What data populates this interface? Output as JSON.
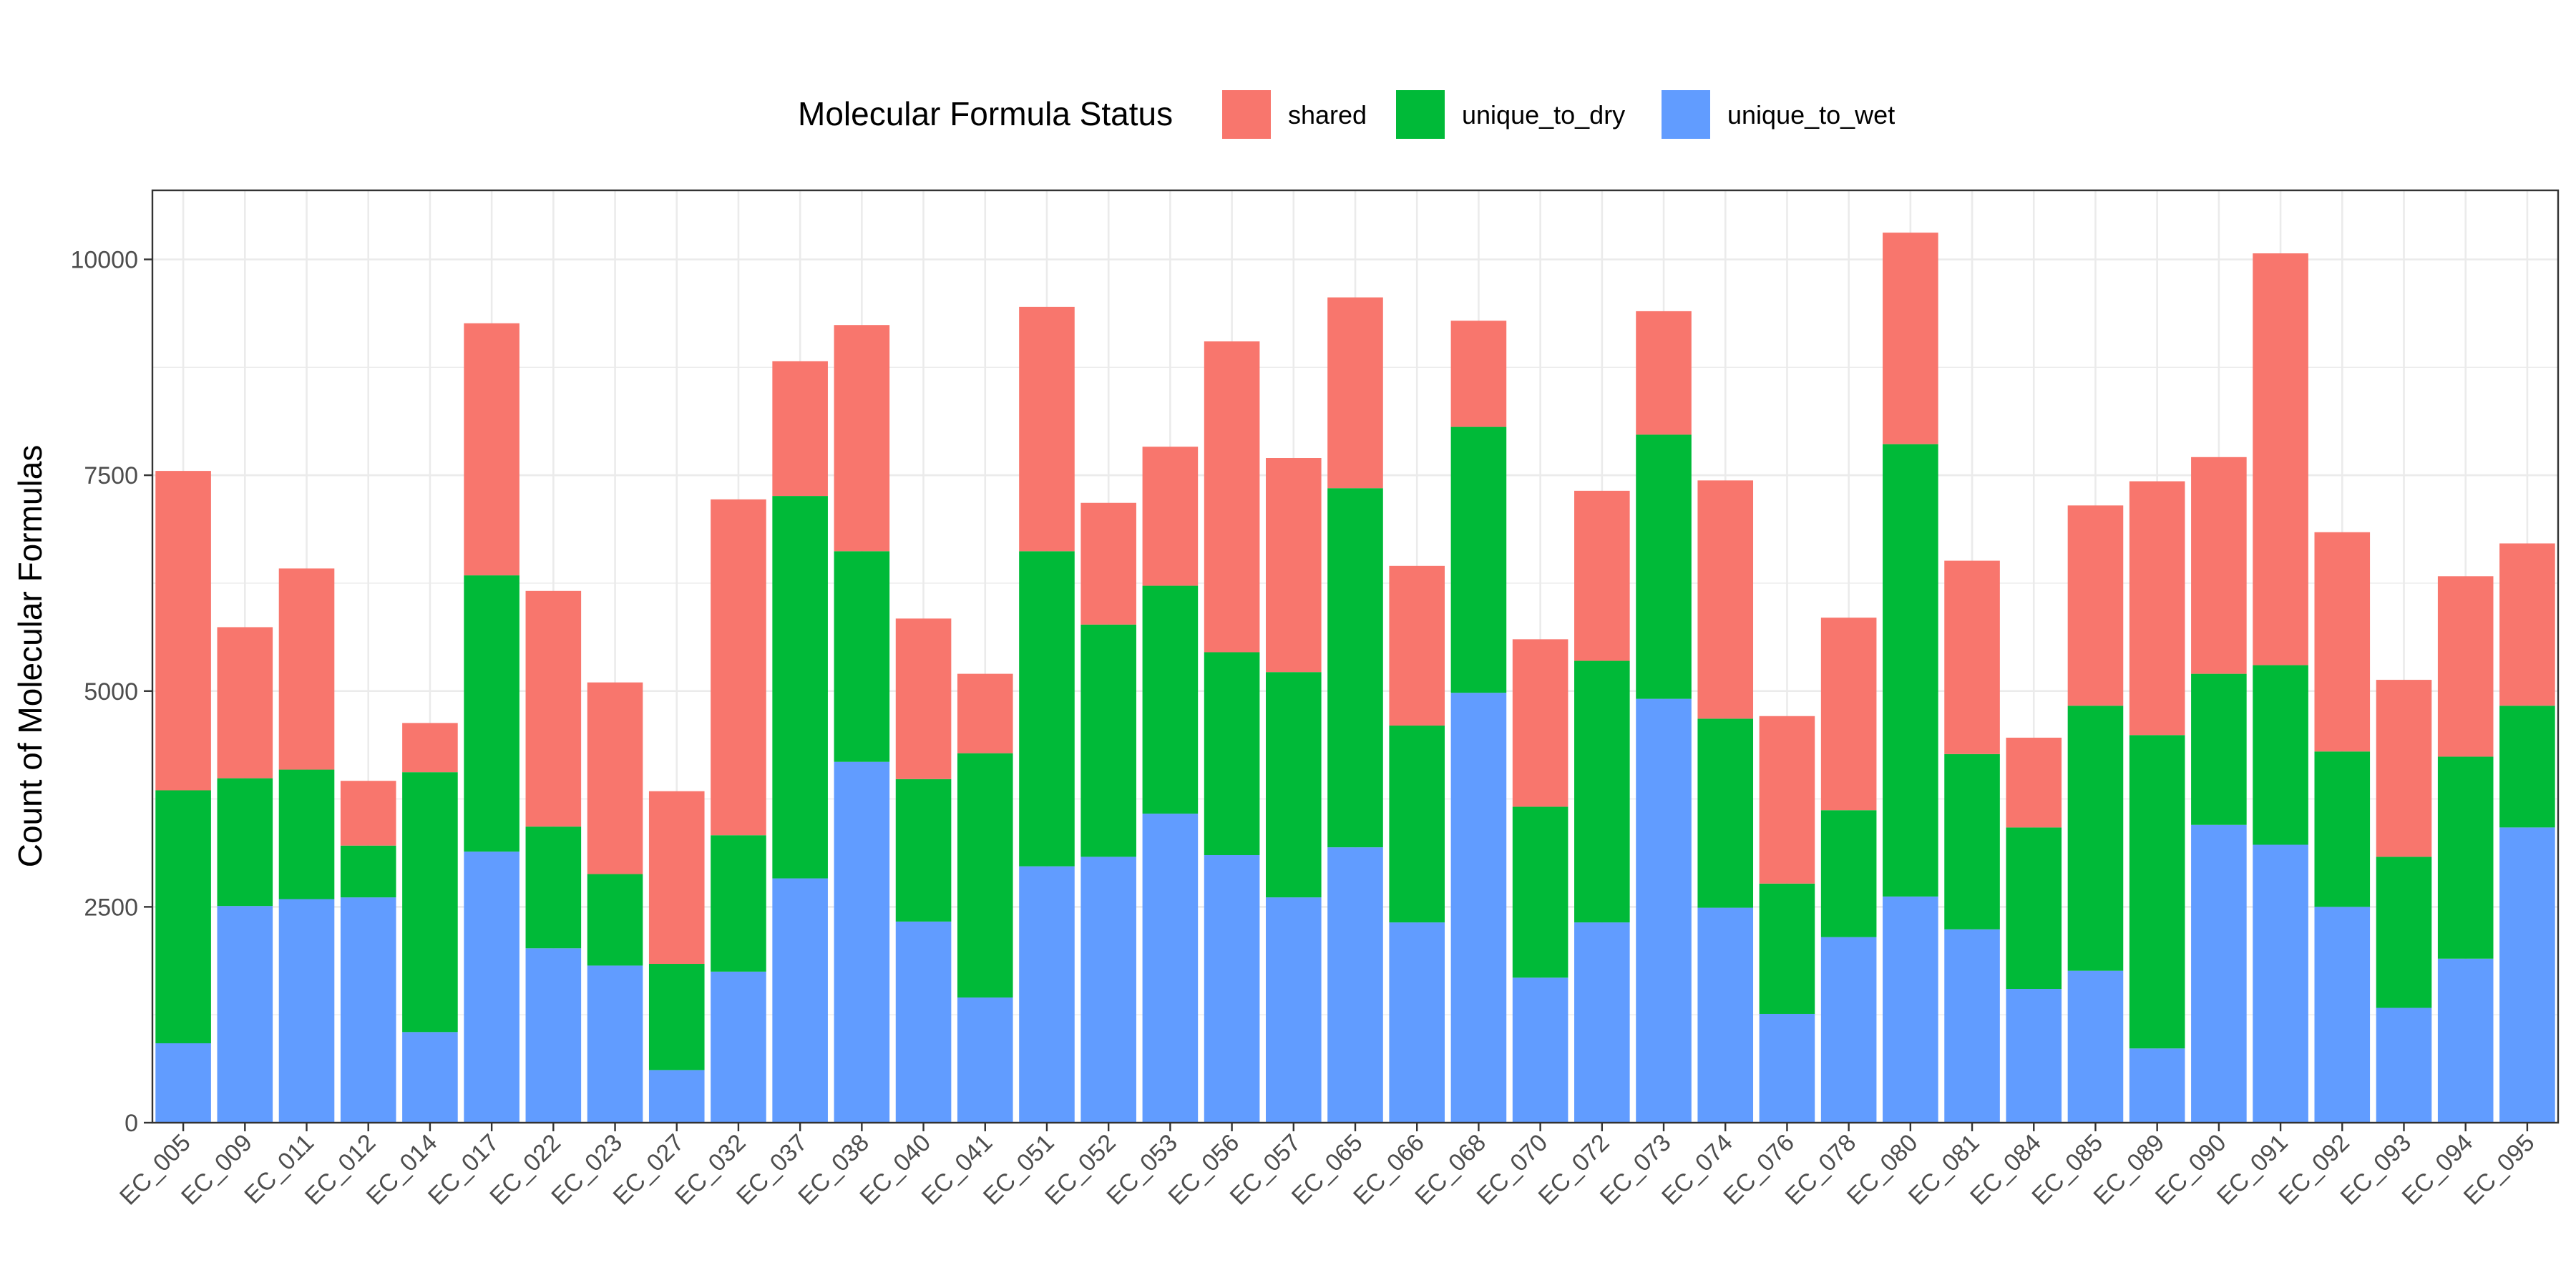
{
  "chart_data": {
    "type": "bar",
    "stacked": true,
    "ylabel": "Count of Molecular Formulas",
    "xlabel": "",
    "ylim": [
      0,
      10800
    ],
    "yticks": [
      0,
      2500,
      5000,
      7500,
      10000
    ],
    "yticklabels": [
      "0",
      "2500",
      "5000",
      "7500",
      "10000"
    ],
    "grid": true,
    "legend": {
      "title": "Molecular Formula Status",
      "position": "top",
      "entries": [
        "shared",
        "unique_to_dry",
        "unique_to_wet"
      ]
    },
    "categories": [
      "EC_005",
      "EC_009",
      "EC_011",
      "EC_012",
      "EC_014",
      "EC_017",
      "EC_022",
      "EC_023",
      "EC_027",
      "EC_032",
      "EC_037",
      "EC_038",
      "EC_040",
      "EC_041",
      "EC_051",
      "EC_052",
      "EC_053",
      "EC_056",
      "EC_057",
      "EC_065",
      "EC_066",
      "EC_068",
      "EC_070",
      "EC_072",
      "EC_073",
      "EC_074",
      "EC_076",
      "EC_078",
      "EC_080",
      "EC_081",
      "EC_084",
      "EC_085",
      "EC_089",
      "EC_090",
      "EC_091",
      "EC_092",
      "EC_093",
      "EC_094",
      "EC_095"
    ],
    "series": [
      {
        "name": "unique_to_wet",
        "color": "#619CFF",
        "values": [
          920,
          2510,
          2590,
          2610,
          1050,
          3140,
          2020,
          1820,
          610,
          1750,
          2830,
          4180,
          2330,
          1450,
          2970,
          3080,
          3580,
          3100,
          2610,
          3190,
          2320,
          4980,
          1680,
          2320,
          4910,
          2490,
          1260,
          2150,
          2620,
          2240,
          1550,
          1760,
          860,
          3450,
          3220,
          2500,
          1330,
          1900,
          3420
        ]
      },
      {
        "name": "unique_to_dry",
        "color": "#00BA38",
        "values": [
          2930,
          1480,
          1500,
          600,
          3010,
          3200,
          1410,
          1060,
          1230,
          1580,
          4430,
          2440,
          1650,
          2830,
          3650,
          2690,
          2640,
          2350,
          2610,
          4160,
          2280,
          3080,
          1980,
          3030,
          3060,
          2190,
          1510,
          1470,
          5240,
          2030,
          1870,
          3070,
          3630,
          1750,
          2080,
          1800,
          1750,
          2340,
          1410
        ]
      },
      {
        "name": "shared",
        "color": "#F8766D",
        "values": [
          3700,
          1750,
          2330,
          750,
          570,
          2920,
          2730,
          2220,
          2000,
          3890,
          1560,
          2620,
          1860,
          920,
          2830,
          1410,
          1610,
          3600,
          2480,
          2210,
          1850,
          1230,
          1940,
          1970,
          1430,
          2760,
          1940,
          2230,
          2450,
          2240,
          1040,
          2320,
          2940,
          2510,
          4770,
          2540,
          2050,
          2090,
          1880
        ]
      }
    ]
  }
}
